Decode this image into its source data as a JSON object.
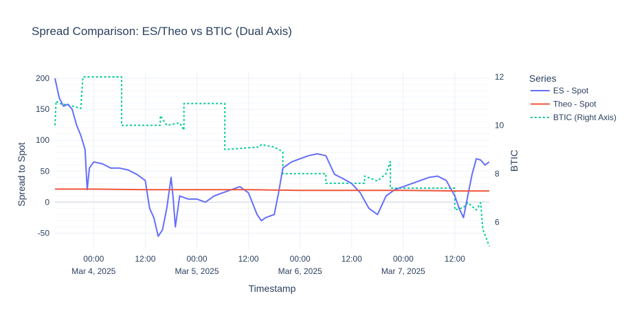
{
  "chart_data": {
    "type": "line",
    "title": "Spread Comparison: ES/Theo vs BTIC (Dual Axis)",
    "xlabel": "Timestamp",
    "ylabel": "Spread to Spot",
    "y2label": "BTIC",
    "xlim": [
      "2025-03-03 15:00",
      "2025-03-07 20:00"
    ],
    "ylim": [
      -75,
      210
    ],
    "y2lim": [
      4.9,
      12.2
    ],
    "x_ticks": [
      {
        "t": "2025-03-04 00:00",
        "line1": "00:00",
        "line2": "Mar 4, 2025"
      },
      {
        "t": "2025-03-04 12:00",
        "line1": "12:00",
        "line2": ""
      },
      {
        "t": "2025-03-05 00:00",
        "line1": "00:00",
        "line2": "Mar 5, 2025"
      },
      {
        "t": "2025-03-05 12:00",
        "line1": "12:00",
        "line2": ""
      },
      {
        "t": "2025-03-06 00:00",
        "line1": "00:00",
        "line2": "Mar 6, 2025"
      },
      {
        "t": "2025-03-06 12:00",
        "line1": "12:00",
        "line2": ""
      },
      {
        "t": "2025-03-07 00:00",
        "line1": "00:00",
        "line2": "Mar 7, 2025"
      },
      {
        "t": "2025-03-07 12:00",
        "line1": "12:00",
        "line2": ""
      }
    ],
    "y_ticks": [
      -50,
      0,
      50,
      100,
      150,
      200
    ],
    "y2_ticks": [
      6,
      8,
      10,
      12
    ],
    "grid": true,
    "legend": {
      "title": "Series",
      "placement": "right"
    },
    "series": [
      {
        "name": "ES - Spot",
        "axis": "y",
        "color": "#636efa",
        "style": "solid",
        "points": [
          [
            "2025-03-03 15:00",
            200
          ],
          [
            "2025-03-03 16:00",
            168
          ],
          [
            "2025-03-03 17:00",
            155
          ],
          [
            "2025-03-03 18:00",
            158
          ],
          [
            "2025-03-03 19:00",
            150
          ],
          [
            "2025-03-03 20:00",
            125
          ],
          [
            "2025-03-03 21:00",
            108
          ],
          [
            "2025-03-03 22:00",
            85
          ],
          [
            "2025-03-03 22:30",
            20
          ],
          [
            "2025-03-03 23:00",
            55
          ],
          [
            "2025-03-04 00:00",
            65
          ],
          [
            "2025-03-04 02:00",
            62
          ],
          [
            "2025-03-04 04:00",
            55
          ],
          [
            "2025-03-04 06:00",
            55
          ],
          [
            "2025-03-04 08:00",
            52
          ],
          [
            "2025-03-04 10:00",
            45
          ],
          [
            "2025-03-04 12:00",
            35
          ],
          [
            "2025-03-04 13:00",
            -10
          ],
          [
            "2025-03-04 14:00",
            -25
          ],
          [
            "2025-03-04 15:00",
            -55
          ],
          [
            "2025-03-04 16:00",
            -45
          ],
          [
            "2025-03-04 17:00",
            -10
          ],
          [
            "2025-03-04 18:00",
            40
          ],
          [
            "2025-03-04 18:30",
            5
          ],
          [
            "2025-03-04 19:00",
            -40
          ],
          [
            "2025-03-04 20:00",
            10
          ],
          [
            "2025-03-04 22:00",
            5
          ],
          [
            "2025-03-05 00:00",
            5
          ],
          [
            "2025-03-05 02:00",
            0
          ],
          [
            "2025-03-05 04:00",
            10
          ],
          [
            "2025-03-05 06:00",
            15
          ],
          [
            "2025-03-05 08:00",
            20
          ],
          [
            "2025-03-05 10:00",
            25
          ],
          [
            "2025-03-05 12:00",
            15
          ],
          [
            "2025-03-05 14:00",
            -20
          ],
          [
            "2025-03-05 15:00",
            -30
          ],
          [
            "2025-03-05 16:00",
            -25
          ],
          [
            "2025-03-05 18:00",
            -20
          ],
          [
            "2025-03-05 19:00",
            15
          ],
          [
            "2025-03-05 20:00",
            55
          ],
          [
            "2025-03-05 21:00",
            60
          ],
          [
            "2025-03-05 22:00",
            65
          ],
          [
            "2025-03-06 00:00",
            70
          ],
          [
            "2025-03-06 02:00",
            75
          ],
          [
            "2025-03-06 04:00",
            78
          ],
          [
            "2025-03-06 06:00",
            75
          ],
          [
            "2025-03-06 07:00",
            60
          ],
          [
            "2025-03-06 08:00",
            45
          ],
          [
            "2025-03-06 10:00",
            38
          ],
          [
            "2025-03-06 12:00",
            30
          ],
          [
            "2025-03-06 14:00",
            15
          ],
          [
            "2025-03-06 16:00",
            -10
          ],
          [
            "2025-03-06 18:00",
            -20
          ],
          [
            "2025-03-06 19:00",
            -5
          ],
          [
            "2025-03-06 20:00",
            10
          ],
          [
            "2025-03-06 22:00",
            20
          ],
          [
            "2025-03-07 00:00",
            25
          ],
          [
            "2025-03-07 02:00",
            30
          ],
          [
            "2025-03-07 04:00",
            35
          ],
          [
            "2025-03-07 06:00",
            40
          ],
          [
            "2025-03-07 08:00",
            42
          ],
          [
            "2025-03-07 10:00",
            35
          ],
          [
            "2025-03-07 12:00",
            10
          ],
          [
            "2025-03-07 13:00",
            -10
          ],
          [
            "2025-03-07 14:00",
            -25
          ],
          [
            "2025-03-07 15:00",
            10
          ],
          [
            "2025-03-07 16:00",
            45
          ],
          [
            "2025-03-07 17:00",
            70
          ],
          [
            "2025-03-07 18:00",
            68
          ],
          [
            "2025-03-07 19:00",
            60
          ],
          [
            "2025-03-07 20:00",
            65
          ]
        ]
      },
      {
        "name": "Theo - Spot",
        "axis": "y",
        "color": "#ef553b",
        "style": "solid",
        "points": [
          [
            "2025-03-03 15:00",
            21
          ],
          [
            "2025-03-04 00:00",
            21
          ],
          [
            "2025-03-04 12:00",
            20
          ],
          [
            "2025-03-05 00:00",
            20
          ],
          [
            "2025-03-05 12:00",
            20
          ],
          [
            "2025-03-06 00:00",
            19
          ],
          [
            "2025-03-06 12:00",
            19
          ],
          [
            "2025-03-07 00:00",
            19
          ],
          [
            "2025-03-07 12:00",
            18
          ],
          [
            "2025-03-07 20:00",
            18
          ]
        ]
      },
      {
        "name": "BTIC (Right Axis)",
        "axis": "y2",
        "color": "#00cc96",
        "style": "dotted",
        "points": [
          [
            "2025-03-03 15:00",
            10.0
          ],
          [
            "2025-03-03 15:15",
            11.0
          ],
          [
            "2025-03-03 16:00",
            10.9
          ],
          [
            "2025-03-03 19:00",
            10.8
          ],
          [
            "2025-03-03 21:00",
            10.7
          ],
          [
            "2025-03-03 21:30",
            12.0
          ],
          [
            "2025-03-04 06:30",
            12.0
          ],
          [
            "2025-03-04 06:30",
            10.0
          ],
          [
            "2025-03-04 15:30",
            10.0
          ],
          [
            "2025-03-04 15:30",
            10.4
          ],
          [
            "2025-03-04 17:00",
            10.0
          ],
          [
            "2025-03-04 20:00",
            10.1
          ],
          [
            "2025-03-04 21:00",
            9.8
          ],
          [
            "2025-03-04 21:00",
            10.9
          ],
          [
            "2025-03-05 06:30",
            10.9
          ],
          [
            "2025-03-05 06:30",
            9.0
          ],
          [
            "2025-03-05 14:30",
            9.1
          ],
          [
            "2025-03-05 15:00",
            9.2
          ],
          [
            "2025-03-05 18:00",
            9.1
          ],
          [
            "2025-03-05 20:00",
            8.9
          ],
          [
            "2025-03-05 20:00",
            8.0
          ],
          [
            "2025-03-06 06:00",
            8.0
          ],
          [
            "2025-03-06 06:00",
            7.6
          ],
          [
            "2025-03-06 15:00",
            7.6
          ],
          [
            "2025-03-06 15:00",
            7.9
          ],
          [
            "2025-03-06 18:00",
            7.7
          ],
          [
            "2025-03-06 20:00",
            8.0
          ],
          [
            "2025-03-06 21:00",
            8.5
          ],
          [
            "2025-03-06 21:00",
            7.4
          ],
          [
            "2025-03-07 12:00",
            7.4
          ],
          [
            "2025-03-07 12:00",
            6.5
          ],
          [
            "2025-03-07 14:00",
            6.6
          ],
          [
            "2025-03-07 15:00",
            6.8
          ],
          [
            "2025-03-07 17:00",
            6.5
          ],
          [
            "2025-03-07 18:00",
            6.8
          ],
          [
            "2025-03-07 18:30",
            5.7
          ],
          [
            "2025-03-07 20:00",
            5.0
          ]
        ]
      }
    ]
  }
}
